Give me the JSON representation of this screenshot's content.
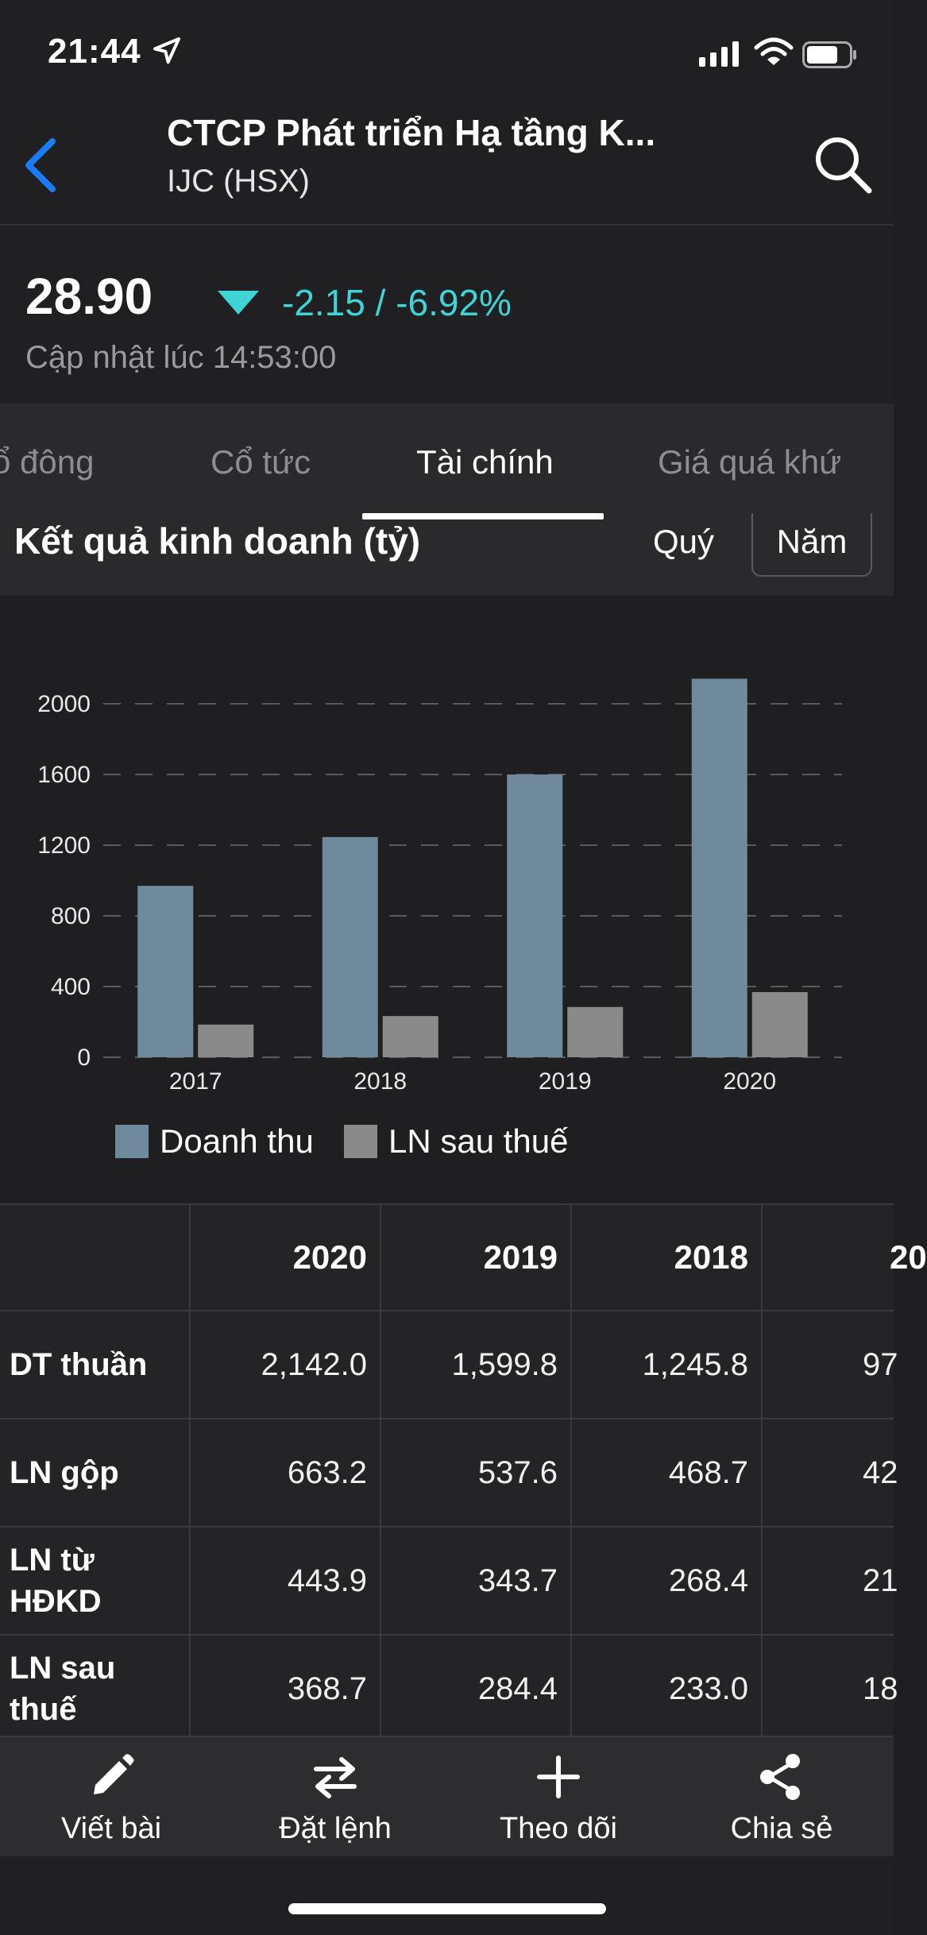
{
  "status_bar": {
    "time": "21:44"
  },
  "header": {
    "title": "CTCP Phát triển Hạ tầng K...",
    "subtitle": "IJC (HSX)"
  },
  "price": {
    "value": "28.90",
    "change": "-2.15 / -6.92%",
    "updated": "Cập nhật lúc 14:53:00",
    "change_color": "#3fd4d6"
  },
  "tabs": [
    {
      "label": "ổ đông"
    },
    {
      "label": "Cổ tức"
    },
    {
      "label": "Tài chính"
    },
    {
      "label": "Giá quá khứ"
    }
  ],
  "section": {
    "title": "Kết quả kinh doanh (tỷ)",
    "period_quarter": "Quý",
    "period_year": "Năm"
  },
  "chart_data": {
    "type": "bar",
    "categories": [
      "2017",
      "2018",
      "2019",
      "2020"
    ],
    "series": [
      {
        "name": "Doanh thu",
        "values": [
          970,
          1245.8,
          1599.8,
          2142.0
        ],
        "color": "#6f8a9b"
      },
      {
        "name": "LN sau thuế",
        "values": [
          185,
          233.0,
          284.4,
          368.7
        ],
        "color": "#8a8a8a"
      }
    ],
    "y_ticks": [
      "0",
      "400",
      "800",
      "1200",
      "1600",
      "2000"
    ],
    "ylim": [
      0,
      2000
    ],
    "grid": true,
    "legend_position": "bottom"
  },
  "table": {
    "columns": [
      "",
      "2020",
      "2019",
      "2018",
      "20"
    ],
    "rows": [
      {
        "label": "DT thuần",
        "values": [
          "2,142.0",
          "1,599.8",
          "1,245.8",
          "97"
        ]
      },
      {
        "label": "LN gộp",
        "values": [
          "663.2",
          "537.6",
          "468.7",
          "42"
        ]
      },
      {
        "label": "LN từ HĐKD",
        "values": [
          "443.9",
          "343.7",
          "268.4",
          "21"
        ]
      },
      {
        "label": "LN sau thuế",
        "values": [
          "368.7",
          "284.4",
          "233.0",
          "18"
        ]
      }
    ]
  },
  "toolbar": [
    {
      "label": "Viết bài",
      "icon": "pencil-icon"
    },
    {
      "label": "Đặt lệnh",
      "icon": "swap-icon"
    },
    {
      "label": "Theo dõi",
      "icon": "plus-icon"
    },
    {
      "label": "Chia sẻ",
      "icon": "share-icon"
    }
  ],
  "colors": {
    "accent": "#1a7cf5",
    "background": "#1f1f21"
  }
}
